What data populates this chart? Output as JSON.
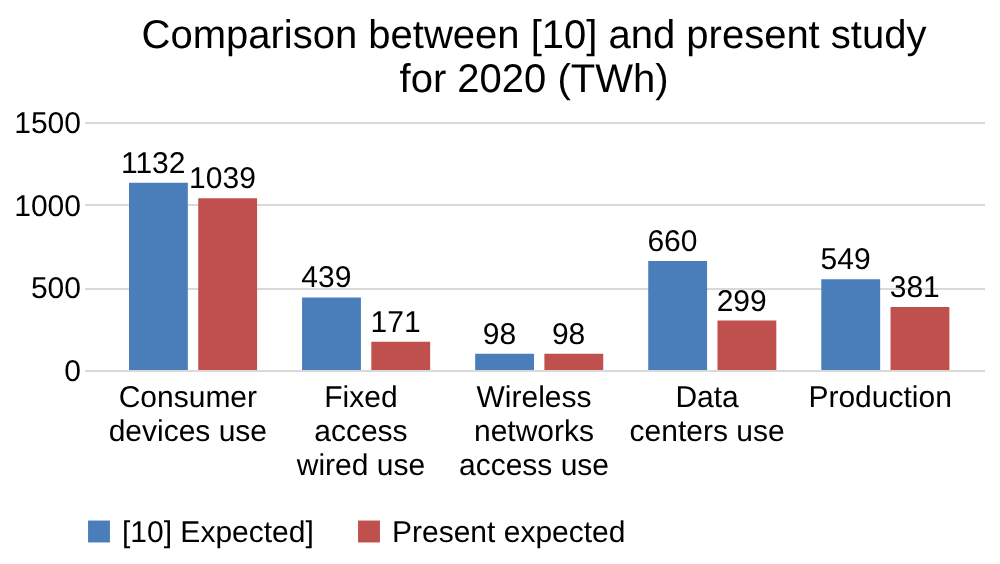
{
  "chart_data": {
    "type": "bar",
    "title": "Comparison between [10] and present study for 2020 (TWh)",
    "categories": [
      "Consumer devices use",
      "Fixed access wired use",
      "Wireless networks access use",
      "Data centers use",
      "Production"
    ],
    "series": [
      {
        "name": "[10] Expected]",
        "color": "#4a7ebb",
        "values": [
          1132,
          439,
          98,
          660,
          549
        ]
      },
      {
        "name": "Present expected",
        "color": "#c0504d",
        "values": [
          1039,
          171,
          98,
          299,
          381
        ]
      }
    ],
    "ylim": [
      0,
      1500
    ],
    "yticks": [
      0,
      500,
      1000,
      1500
    ],
    "grid": "y",
    "legend": "bottom",
    "data_labels": true
  }
}
